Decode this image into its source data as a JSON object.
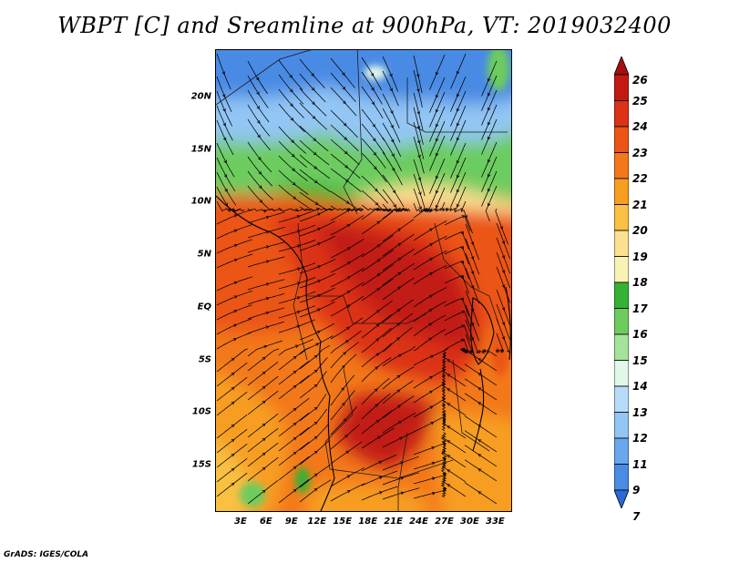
{
  "title": "WBPT [C] and Sreamline at 900hPa, VT: 2019032400",
  "credit": "GrADS: IGES/COLA",
  "map": {
    "lon_range": [
      0,
      35
    ],
    "lat_range": [
      -19.5,
      24.5
    ],
    "lat_ticks": [
      {
        "value": 20,
        "label": "20N"
      },
      {
        "value": 15,
        "label": "15N"
      },
      {
        "value": 10,
        "label": "10N"
      },
      {
        "value": 5,
        "label": "5N"
      },
      {
        "value": 0,
        "label": "EQ"
      },
      {
        "value": -5,
        "label": "5S"
      },
      {
        "value": -10,
        "label": "10S"
      },
      {
        "value": -15,
        "label": "15S"
      }
    ],
    "lon_ticks": [
      {
        "value": 3,
        "label": "3E"
      },
      {
        "value": 6,
        "label": "6E"
      },
      {
        "value": 9,
        "label": "9E"
      },
      {
        "value": 12,
        "label": "12E"
      },
      {
        "value": 15,
        "label": "15E"
      },
      {
        "value": 18,
        "label": "18E"
      },
      {
        "value": 21,
        "label": "21E"
      },
      {
        "value": 24,
        "label": "24E"
      },
      {
        "value": 27,
        "label": "27E"
      },
      {
        "value": 30,
        "label": "30E"
      },
      {
        "value": 33,
        "label": "33E"
      }
    ]
  },
  "colorbar": {
    "levels": [
      {
        "label": "26",
        "color": "#a50f0f"
      },
      {
        "label": "25",
        "color": "#c21a12"
      },
      {
        "label": "24",
        "color": "#dc3215"
      },
      {
        "label": "23",
        "color": "#eb5516"
      },
      {
        "label": "22",
        "color": "#f2781a"
      },
      {
        "label": "21",
        "color": "#f79e20"
      },
      {
        "label": "20",
        "color": "#f9c043"
      },
      {
        "label": "19",
        "color": "#fbe092"
      },
      {
        "label": "18",
        "color": "#f8f3b4"
      },
      {
        "label": "17",
        "color": "#35b235"
      },
      {
        "label": "16",
        "color": "#6dcc5e"
      },
      {
        "label": "15",
        "color": "#a6e39a"
      },
      {
        "label": "14",
        "color": "#e0f8e8"
      },
      {
        "label": "13",
        "color": "#b7dcfa"
      },
      {
        "label": "12",
        "color": "#93c6f4"
      },
      {
        "label": "11",
        "color": "#69a8ec"
      },
      {
        "label": "9",
        "color": "#4a8be4"
      },
      {
        "label": "7",
        "color": "#2a6ad8"
      }
    ]
  }
}
